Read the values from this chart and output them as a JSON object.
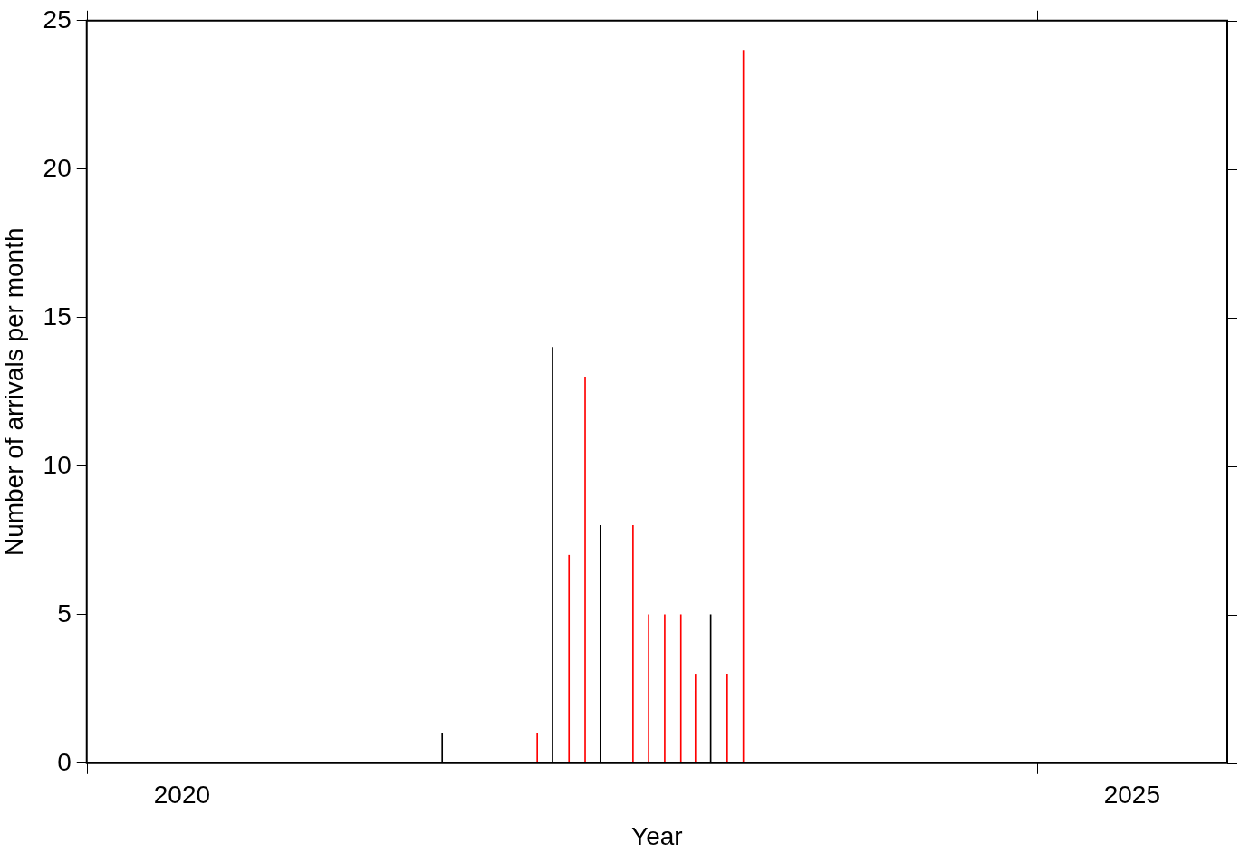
{
  "chart_data": {
    "type": "bar",
    "xlabel": "Year",
    "ylabel": "Number of arrivals per month",
    "xlim": [
      "2020-01-01",
      "2026-01-01"
    ],
    "xticks": [
      {
        "value": "2020-01-01",
        "label": null
      },
      {
        "value": "2020-07-02",
        "label": "2020"
      },
      {
        "value": "2025-01-01",
        "label": null
      },
      {
        "value": "2025-07-02",
        "label": "2025"
      }
    ],
    "ylim": [
      0,
      25
    ],
    "yticks": [
      0,
      5,
      10,
      15,
      20,
      25
    ],
    "grid": false,
    "legend": false,
    "series": [
      {
        "color": "#000000",
        "x": [
          "2021-11-15",
          "2022-06-15",
          "2022-09-15",
          "2023-04-15"
        ],
        "values": [
          1,
          14,
          8,
          5
        ]
      },
      {
        "color": "#ff0000",
        "x": [
          "2022-05-15",
          "2022-07-15",
          "2022-08-15",
          "2022-11-15",
          "2022-12-15",
          "2023-01-15",
          "2023-02-15",
          "2023-03-15",
          "2023-05-15",
          "2023-06-15"
        ],
        "values": [
          1,
          7,
          13,
          8,
          5,
          5,
          5,
          3,
          3,
          24
        ]
      }
    ]
  }
}
